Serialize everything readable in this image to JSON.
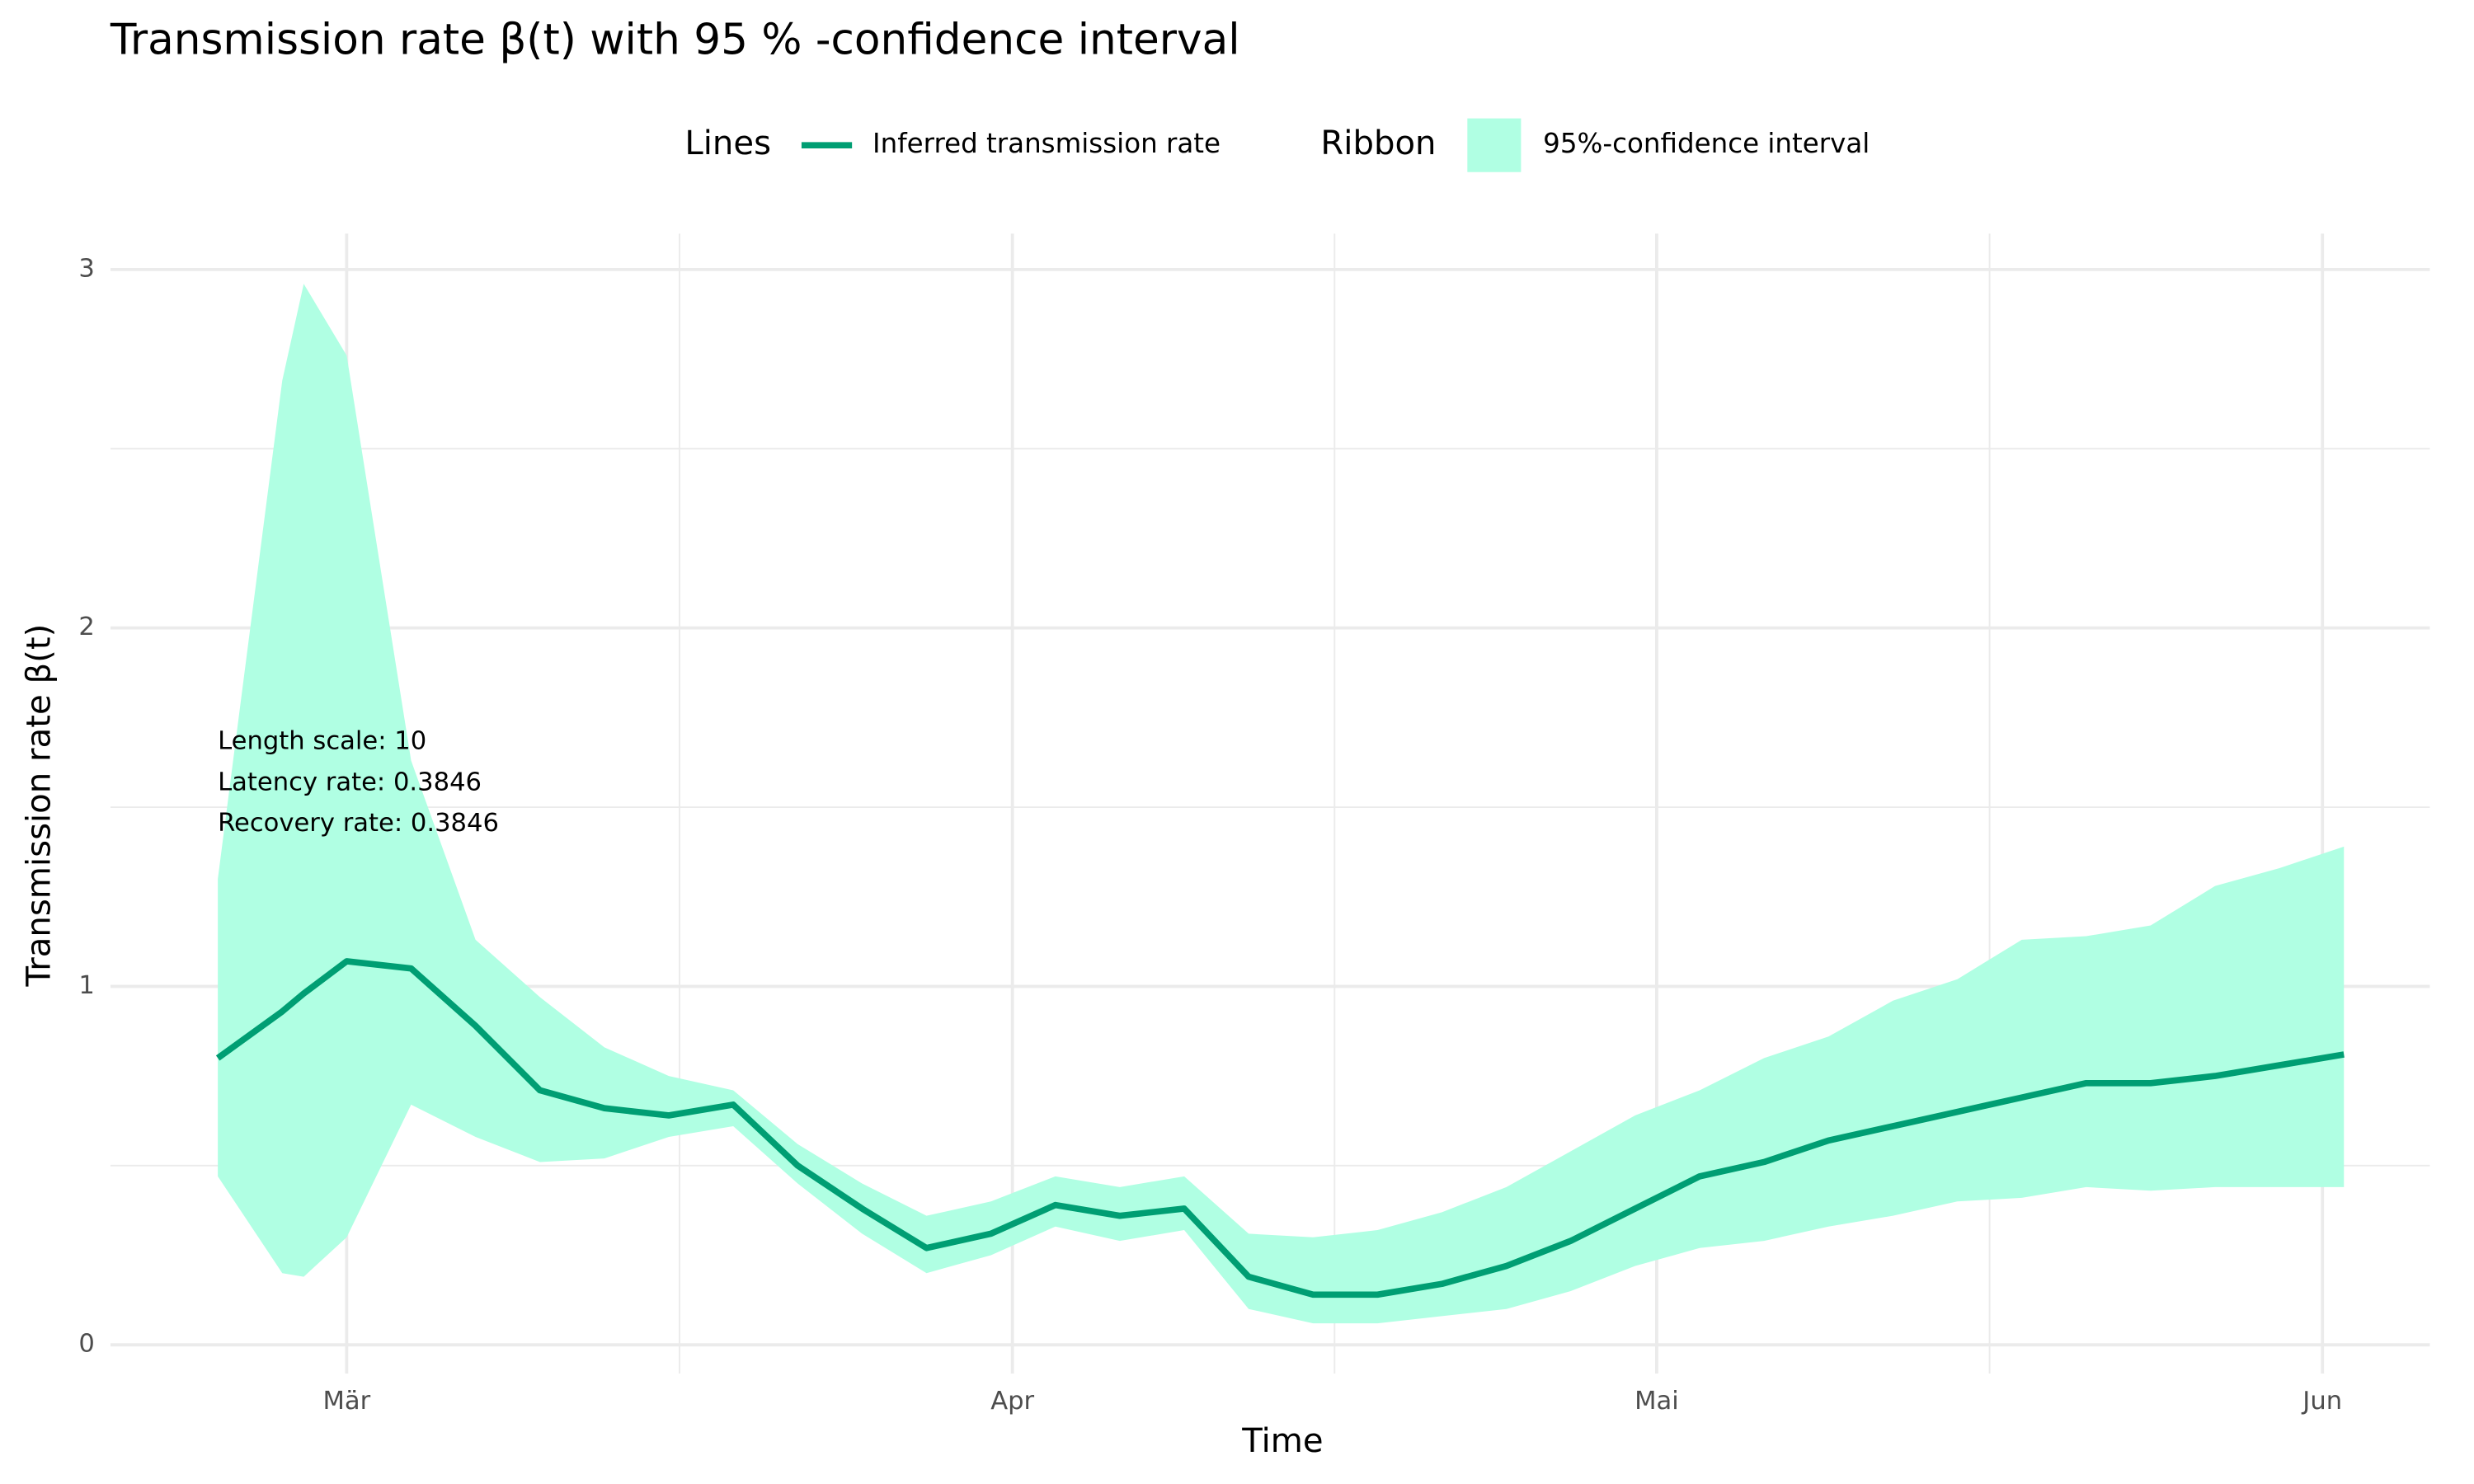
{
  "chart_data": {
    "type": "line",
    "title": "Transmission rate β(t) with 95 % -confidence interval",
    "xlabel": "Time",
    "ylabel": "Transmission rate β(t)",
    "annotations": [
      "Length scale: 10",
      "Latency rate: 0.3846",
      "Recovery rate: 0.3846"
    ],
    "legend": {
      "lines_title": "Lines",
      "ribbon_title": "Ribbon",
      "position": "top"
    },
    "x": [
      -6,
      -3,
      -2,
      0,
      3,
      6,
      9,
      12,
      15,
      18,
      21,
      24,
      27,
      30,
      33,
      36,
      39,
      42,
      45,
      48,
      51,
      54,
      57,
      60,
      63,
      66,
      69,
      72,
      75,
      78,
      81,
      84,
      87,
      90,
      93
    ],
    "series": [
      {
        "name": "Inferred transmission rate",
        "color": "#009e73",
        "values": [
          0.8,
          0.93,
          0.98,
          1.07,
          1.05,
          0.89,
          0.71,
          0.66,
          0.64,
          0.67,
          0.5,
          0.38,
          0.27,
          0.31,
          0.39,
          0.36,
          0.38,
          0.19,
          0.14,
          0.14,
          0.17,
          0.22,
          0.29,
          0.38,
          0.47,
          0.51,
          0.57,
          0.61,
          0.65,
          0.69,
          0.73,
          0.73,
          0.75,
          0.78,
          0.81
        ]
      },
      {
        "name": "95%-confidence interval",
        "color": "#b0ffe3",
        "upper": [
          1.3,
          2.69,
          2.96,
          2.76,
          1.63,
          1.13,
          0.97,
          0.83,
          0.75,
          0.71,
          0.56,
          0.45,
          0.36,
          0.4,
          0.47,
          0.44,
          0.47,
          0.31,
          0.3,
          0.32,
          0.37,
          0.44,
          0.54,
          0.64,
          0.71,
          0.8,
          0.86,
          0.96,
          1.02,
          1.13,
          1.14,
          1.17,
          1.28,
          1.33,
          1.39
        ],
        "lower": [
          0.47,
          0.2,
          0.19,
          0.3,
          0.67,
          0.58,
          0.51,
          0.52,
          0.58,
          0.61,
          0.45,
          0.31,
          0.2,
          0.25,
          0.33,
          0.29,
          0.32,
          0.1,
          0.06,
          0.06,
          0.08,
          0.1,
          0.15,
          0.22,
          0.27,
          0.29,
          0.33,
          0.36,
          0.4,
          0.41,
          0.44,
          0.43,
          0.44,
          0.44,
          0.44
        ]
      }
    ],
    "xlim": [
      -11,
      97
    ],
    "ylim": [
      -0.08,
      3.1
    ],
    "xticks": [
      {
        "value": 0,
        "label": "Mär"
      },
      {
        "value": 31,
        "label": "Apr"
      },
      {
        "value": 61,
        "label": "Mai"
      },
      {
        "value": 92,
        "label": "Jun"
      }
    ],
    "xminorticks": [
      15.5,
      46,
      76.5
    ],
    "yticks": [
      0,
      1,
      2,
      3
    ],
    "yminorticks": [
      0.5,
      1.5,
      2.5
    ],
    "grid": true
  }
}
